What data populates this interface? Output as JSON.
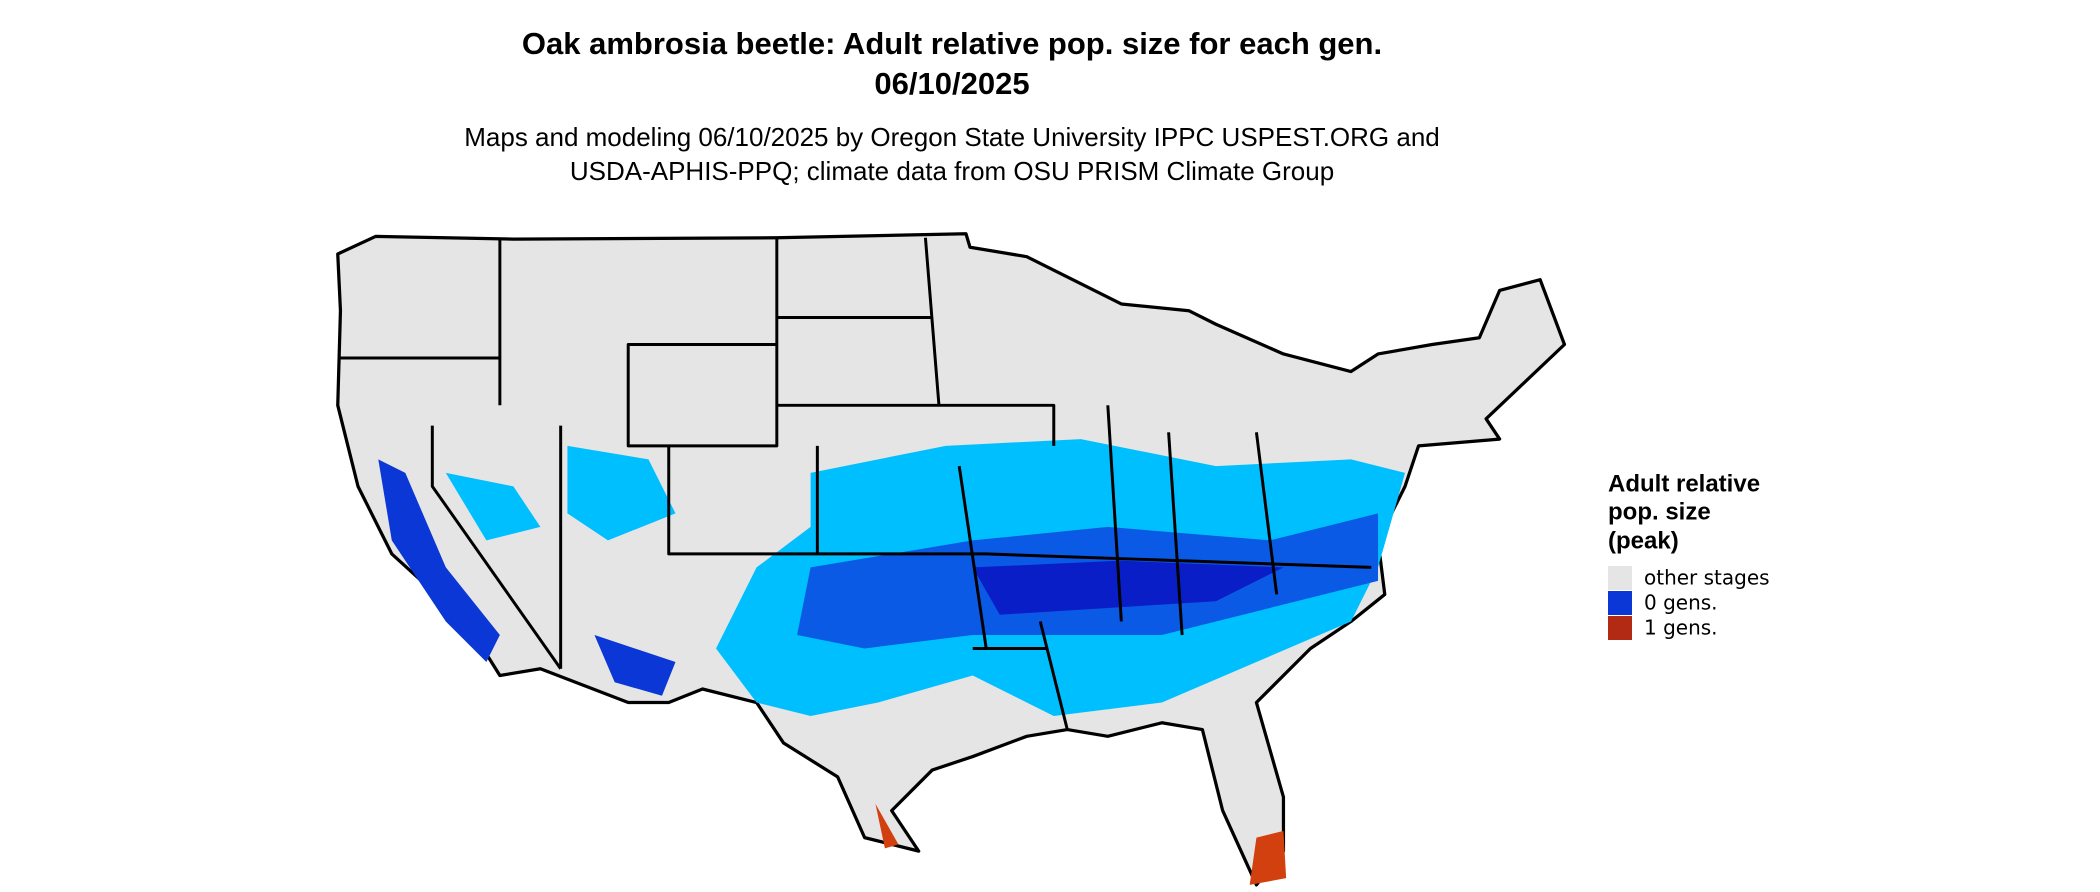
{
  "title": [
    "Oak ambrosia beetle: Adult relative pop. size for each gen.",
    "06/10/2025"
  ],
  "subtitle": [
    "Maps and modeling 06/10/2025 by Oregon State University IPPC USPEST.ORG and",
    "USDA-APHIS-PPQ; climate data from OSU PRISM Climate Group"
  ],
  "legend": {
    "title": [
      "Adult relative",
      "pop. size",
      "(peak)"
    ],
    "items": [
      {
        "label": "other stages",
        "color": "#e5e5e5"
      },
      {
        "label": "0 gens.",
        "color": "#0a37d6"
      },
      {
        "label": "1 gens.",
        "color": "#b22a14"
      }
    ]
  }
}
